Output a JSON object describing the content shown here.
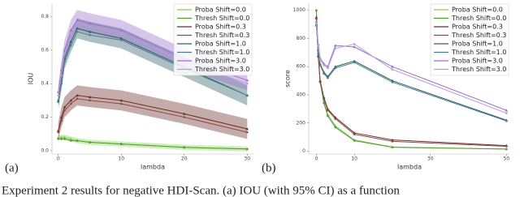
{
  "chart_data": [
    {
      "type": "line",
      "panel_label": "(a)",
      "x_label": "lambda",
      "y_label": "IOU",
      "x": [
        0,
        0.5,
        1,
        2,
        3,
        5,
        10,
        20,
        30
      ],
      "xlim": [
        -1,
        31
      ],
      "xticks": [
        0,
        10,
        20,
        30
      ],
      "ylim": [
        -0.02,
        0.88
      ],
      "yticks": [
        {
          "value": 0,
          "label": "0.0"
        },
        0.2,
        0.4,
        0.6,
        0.8
      ],
      "legend": "upper right",
      "series": [
        {
          "name": "Proba Shift=0.0",
          "color": "#86cf55",
          "values": [
            0.08,
            0.08,
            0.08,
            0.07,
            0.06,
            0.05,
            0.04,
            0.02,
            0.01
          ],
          "ci": [
            0.015,
            0.015,
            0.015,
            0.015,
            0.015,
            0.015,
            0.015,
            0.015,
            0.015
          ]
        },
        {
          "name": "Thresh Shift=0.0",
          "color": "#4f9e2e",
          "values": [
            0.07,
            0.07,
            0.07,
            0.06,
            0.06,
            0.05,
            0.04,
            0.02,
            0.01
          ]
        },
        {
          "name": "Proba Shift=0.3",
          "color": "#6b2f2a",
          "values": [
            0.12,
            0.2,
            0.26,
            0.3,
            0.33,
            0.32,
            0.3,
            0.22,
            0.13
          ],
          "ci": [
            0.05,
            0.06,
            0.06,
            0.06,
            0.06,
            0.06,
            0.06,
            0.06,
            0.06
          ]
        },
        {
          "name": "Thresh Shift=0.3",
          "color": "#8c4b45",
          "values": [
            0.11,
            0.18,
            0.24,
            0.28,
            0.31,
            0.3,
            0.28,
            0.2,
            0.11
          ]
        },
        {
          "name": "Proba Shift=1.0",
          "color": "#2f5f6a",
          "values": [
            0.3,
            0.42,
            0.55,
            0.65,
            0.73,
            0.71,
            0.67,
            0.5,
            0.33
          ],
          "ci": [
            0.05,
            0.06,
            0.06,
            0.06,
            0.06,
            0.06,
            0.06,
            0.06,
            0.06
          ]
        },
        {
          "name": "Thresh Shift=1.0",
          "color": "#4b808b",
          "values": [
            0.29,
            0.4,
            0.53,
            0.63,
            0.71,
            0.69,
            0.66,
            0.49,
            0.33
          ]
        },
        {
          "name": "Proba Shift=3.0",
          "color": "#9a6fca",
          "values": [
            0.35,
            0.48,
            0.6,
            0.72,
            0.78,
            0.76,
            0.72,
            0.55,
            0.42
          ],
          "ci": [
            0.05,
            0.06,
            0.06,
            0.06,
            0.06,
            0.06,
            0.06,
            0.06,
            0.06
          ]
        },
        {
          "name": "Thresh Shift=3.0",
          "color": "#b79be0",
          "values": [
            0.33,
            0.45,
            0.58,
            0.7,
            0.76,
            0.74,
            0.7,
            0.53,
            0.4
          ]
        }
      ]
    },
    {
      "type": "line",
      "panel_label": "(b)",
      "x_label": "lambda",
      "y_label": "score",
      "x": [
        0,
        0.5,
        1,
        2,
        3,
        5,
        10,
        20,
        50
      ],
      "xlim": [
        -2,
        51
      ],
      "xticks": [
        0,
        10,
        30,
        50
      ],
      "ylim": [
        -20,
        1050
      ],
      "yticks": [
        0,
        200,
        400,
        600,
        800,
        1000
      ],
      "legend": "upper right",
      "series": [
        {
          "name": "Proba Shift=0.0",
          "color": "#86cf55",
          "values": [
            1000,
            700,
            500,
            350,
            260,
            180,
            80,
            30,
            15
          ]
        },
        {
          "name": "Thresh Shift=0.0",
          "color": "#4f9e2e",
          "values": [
            1000,
            690,
            490,
            340,
            250,
            170,
            75,
            28,
            15
          ]
        },
        {
          "name": "Proba Shift=0.3",
          "color": "#6b2f2a",
          "values": [
            950,
            680,
            500,
            380,
            300,
            240,
            130,
            80,
            40
          ]
        },
        {
          "name": "Thresh Shift=0.3",
          "color": "#8c4b45",
          "values": [
            940,
            670,
            490,
            370,
            290,
            230,
            120,
            70,
            35
          ]
        },
        {
          "name": "Proba Shift=1.0",
          "color": "#2f5f6a",
          "values": [
            900,
            720,
            620,
            560,
            530,
            600,
            640,
            500,
            220
          ]
        },
        {
          "name": "Thresh Shift=1.0",
          "color": "#4b808b",
          "values": [
            890,
            710,
            610,
            550,
            520,
            590,
            630,
            490,
            215
          ]
        },
        {
          "name": "Proba Shift=3.0",
          "color": "#9a6fca",
          "values": [
            920,
            760,
            660,
            620,
            600,
            750,
            740,
            600,
            290
          ]
        },
        {
          "name": "Thresh Shift=3.0",
          "color": "#b79be0",
          "values": [
            910,
            750,
            650,
            610,
            590,
            730,
            760,
            580,
            270
          ]
        }
      ]
    }
  ],
  "caption": "Experiment 2 results for negative HDI-Scan. (a) IOU (with 95% CI) as a function"
}
